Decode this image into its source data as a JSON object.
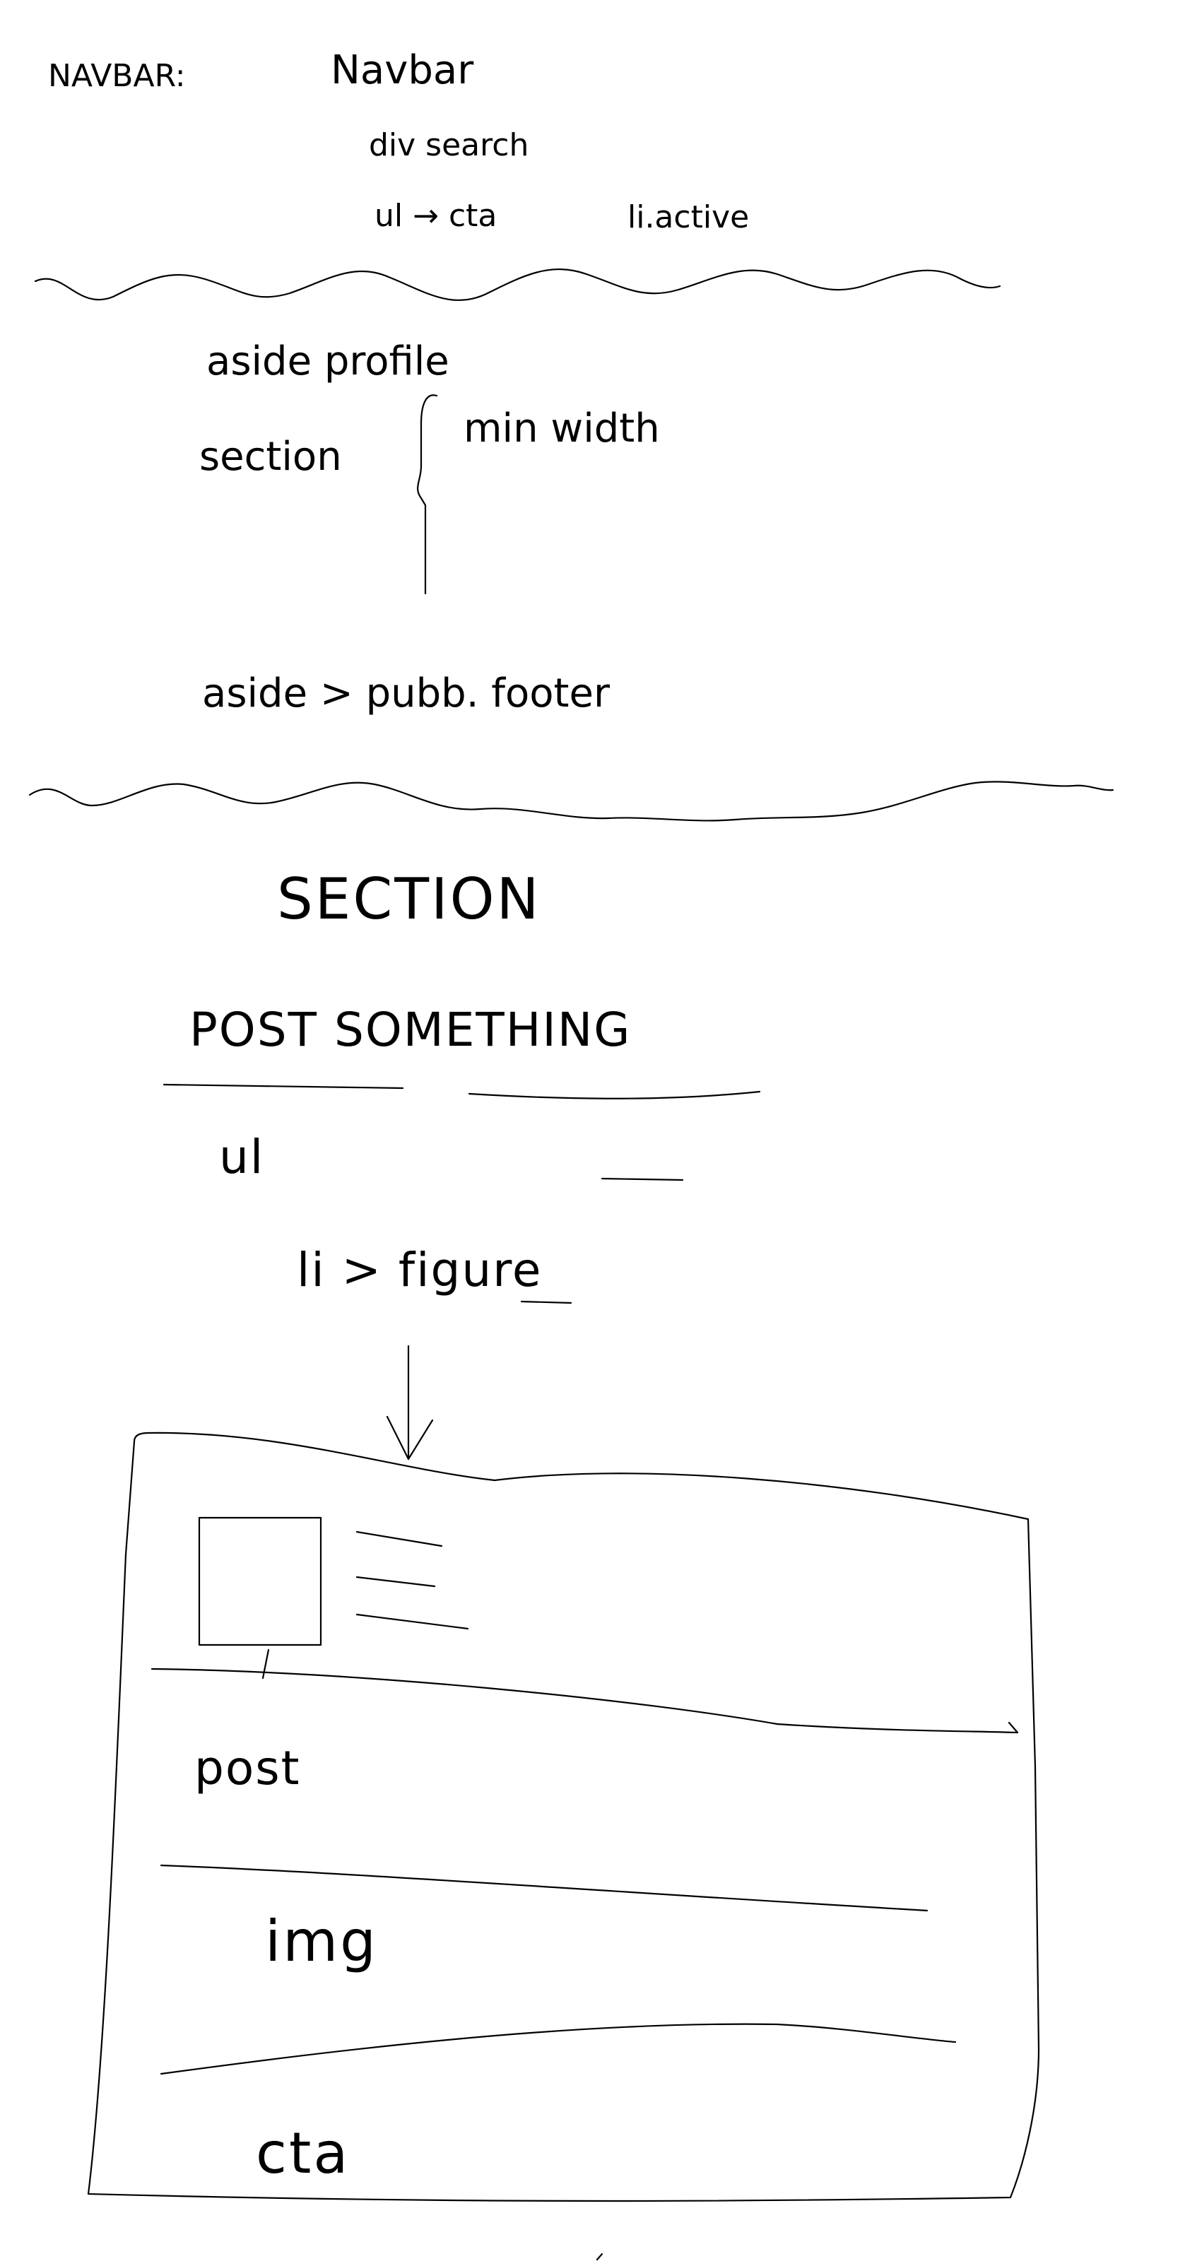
{
  "navbar_notes": {
    "heading": "NAVBAR:",
    "title": "Navbar",
    "line1": "div search",
    "line2_left": "ul → cta",
    "line2_right": "li.active"
  },
  "layout_notes": {
    "aside_top": "aside profile",
    "section": "section",
    "min_width": "min width",
    "aside_bottom": "aside > pubb. footer"
  },
  "section_notes": {
    "heading": "SECTION",
    "post_label": "POST SOMETHING",
    "ul": "ul",
    "li_figure": "li > figure"
  },
  "card": {
    "post": "post",
    "img": "img",
    "cta": "cta"
  }
}
